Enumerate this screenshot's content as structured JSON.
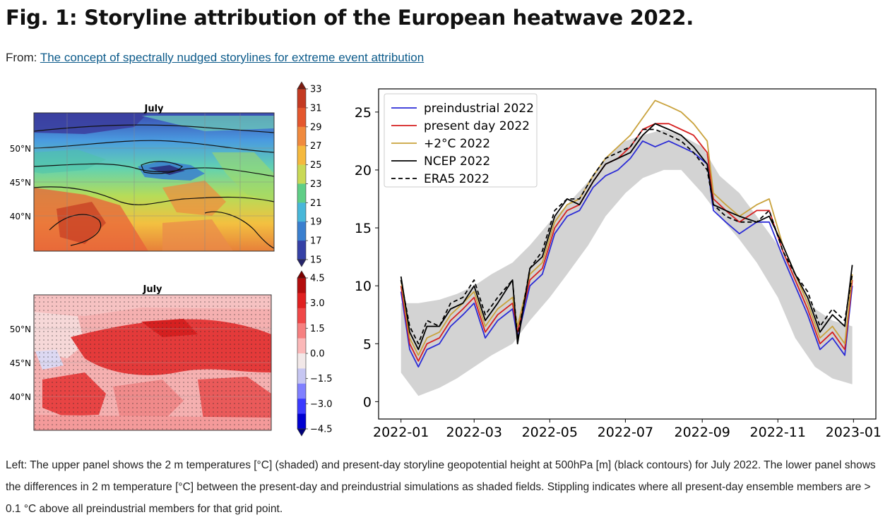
{
  "figure": {
    "title": "Fig. 1: Storyline attribution of the European heatwave 2022.",
    "source_prefix": "From: ",
    "source_link": "The concept of spectrally nudged storylines for extreme event attribution",
    "caption": "Left: The upper panel shows the 2 m temperatures [°C] (shaded) and present-day storyline geopotential height at 500hPa [m] (black contours) for July 2022. The lower panel shows the differences in 2 m temperature [°C] between the present-day and preindustrial simulations as shaded fields. Stippling indicates where all present-day ensemble members are > 0.1 °C above all preindustrial members for that grid point."
  },
  "maps": {
    "upper": {
      "title": "July",
      "lat_labels": [
        "50°N",
        "45°N",
        "40°N"
      ],
      "colorbar_ticks": [
        "33",
        "31",
        "29",
        "27",
        "25",
        "23",
        "21",
        "19",
        "17",
        "15"
      ],
      "colorbar_colors": [
        "#7a1c12",
        "#c43a22",
        "#e4572e",
        "#f08a3e",
        "#f5b93e",
        "#c9d956",
        "#5fce86",
        "#48b7d9",
        "#3a7fcf",
        "#3541a6",
        "#26246a"
      ]
    },
    "lower": {
      "title": "July",
      "lat_labels": [
        "50°N",
        "45°N",
        "40°N"
      ],
      "colorbar_ticks": [
        "4.5",
        "3.0",
        "1.5",
        "0.0",
        "−1.5",
        "−3.0",
        "−4.5"
      ],
      "colorbar_colors": [
        "#7a0000",
        "#b30d0d",
        "#e02020",
        "#f04848",
        "#f68080",
        "#fbb8b8",
        "#f2e8e8",
        "#c6c6f2",
        "#8080ff",
        "#3a3aff",
        "#0000d0",
        "#00007a"
      ]
    }
  },
  "chart_data": {
    "type": "line",
    "title": "",
    "xlabel": "",
    "ylabel": "",
    "xlim": [
      "2022-01-01",
      "2023-01-01"
    ],
    "ylim": [
      -1.5,
      27
    ],
    "x_tick_labels": [
      "2022-01",
      "2022-03",
      "2022-05",
      "2022-07",
      "2022-09",
      "2022-11",
      "2023-01"
    ],
    "y_tick_values": [
      0,
      5,
      10,
      15,
      20,
      25
    ],
    "legend_position": "top-left",
    "band": {
      "x": [
        "2022-01-01",
        "2022-01-15",
        "2022-02-01",
        "2022-02-15",
        "2022-03-01",
        "2022-03-15",
        "2022-04-01",
        "2022-04-15",
        "2022-05-01",
        "2022-05-15",
        "2022-06-01",
        "2022-06-15",
        "2022-07-01",
        "2022-07-15",
        "2022-08-01",
        "2022-08-15",
        "2022-09-01",
        "2022-09-15",
        "2022-10-01",
        "2022-10-15",
        "2022-11-01",
        "2022-11-15",
        "2022-12-01",
        "2022-12-15",
        "2022-12-31"
      ],
      "low": [
        2.5,
        0.5,
        1.2,
        2.0,
        3.0,
        4.0,
        5.0,
        7.0,
        9.0,
        11.0,
        13.5,
        16.0,
        18.0,
        19.3,
        20.0,
        20.0,
        18.0,
        16.0,
        14.0,
        12.0,
        9.0,
        5.5,
        3.0,
        2.0,
        1.5
      ],
      "high": [
        8.5,
        8.5,
        8.8,
        9.3,
        10.0,
        11.0,
        12.0,
        13.5,
        15.5,
        17.0,
        19.0,
        21.0,
        22.5,
        23.0,
        23.5,
        23.0,
        22.0,
        19.5,
        18.0,
        16.0,
        13.5,
        11.0,
        8.0,
        7.0,
        6.5
      ]
    },
    "series": [
      {
        "name": "preindustrial 2022",
        "color": "#2b2bd6",
        "dash": "",
        "x": [
          "2022-01-01",
          "2022-01-08",
          "2022-01-15",
          "2022-01-22",
          "2022-02-01",
          "2022-02-10",
          "2022-02-20",
          "2022-03-01",
          "2022-03-10",
          "2022-03-20",
          "2022-04-01",
          "2022-04-05",
          "2022-04-15",
          "2022-04-25",
          "2022-05-05",
          "2022-05-15",
          "2022-05-25",
          "2022-06-05",
          "2022-06-15",
          "2022-06-25",
          "2022-07-05",
          "2022-07-15",
          "2022-07-25",
          "2022-08-05",
          "2022-08-15",
          "2022-08-25",
          "2022-09-05",
          "2022-09-10",
          "2022-09-20",
          "2022-10-01",
          "2022-10-15",
          "2022-10-25",
          "2022-11-05",
          "2022-11-15",
          "2022-11-25",
          "2022-12-05",
          "2022-12-15",
          "2022-12-25",
          "2022-12-31"
        ],
        "values": [
          9.5,
          4.5,
          3.0,
          4.5,
          5.0,
          6.5,
          7.5,
          8.5,
          5.5,
          7.0,
          8.0,
          5.5,
          10.0,
          11.0,
          14.5,
          16.0,
          16.5,
          18.5,
          19.5,
          20.0,
          21.0,
          22.5,
          22.0,
          22.5,
          22.0,
          21.5,
          20.5,
          16.5,
          15.5,
          14.5,
          15.5,
          15.5,
          12.5,
          10.0,
          7.5,
          4.5,
          5.5,
          4.0,
          10.0
        ]
      },
      {
        "name": "present day 2022",
        "color": "#d62020",
        "dash": "",
        "x": [
          "2022-01-01",
          "2022-01-08",
          "2022-01-15",
          "2022-01-22",
          "2022-02-01",
          "2022-02-10",
          "2022-02-20",
          "2022-03-01",
          "2022-03-10",
          "2022-03-20",
          "2022-04-01",
          "2022-04-05",
          "2022-04-15",
          "2022-04-25",
          "2022-05-05",
          "2022-05-15",
          "2022-05-25",
          "2022-06-05",
          "2022-06-15",
          "2022-06-25",
          "2022-07-05",
          "2022-07-15",
          "2022-07-25",
          "2022-08-05",
          "2022-08-15",
          "2022-08-25",
          "2022-09-05",
          "2022-09-10",
          "2022-09-20",
          "2022-10-01",
          "2022-10-15",
          "2022-10-25",
          "2022-11-05",
          "2022-11-15",
          "2022-11-25",
          "2022-12-05",
          "2022-12-15",
          "2022-12-25",
          "2022-12-31"
        ],
        "values": [
          10.0,
          5.0,
          3.5,
          5.0,
          5.5,
          7.0,
          8.0,
          9.0,
          6.0,
          7.5,
          8.5,
          6.0,
          10.5,
          11.5,
          15.0,
          16.5,
          17.0,
          19.0,
          20.5,
          21.0,
          22.0,
          23.5,
          24.0,
          24.0,
          23.5,
          23.0,
          21.5,
          17.5,
          16.5,
          15.5,
          16.5,
          16.5,
          13.0,
          10.5,
          8.0,
          5.0,
          6.0,
          4.5,
          10.5
        ]
      },
      {
        "name": "+2°C 2022",
        "color": "#c9a23c",
        "dash": "",
        "x": [
          "2022-01-01",
          "2022-01-08",
          "2022-01-15",
          "2022-01-22",
          "2022-02-01",
          "2022-02-10",
          "2022-02-20",
          "2022-03-01",
          "2022-03-10",
          "2022-03-20",
          "2022-04-01",
          "2022-04-05",
          "2022-04-15",
          "2022-04-25",
          "2022-05-05",
          "2022-05-15",
          "2022-05-25",
          "2022-06-05",
          "2022-06-15",
          "2022-06-25",
          "2022-07-05",
          "2022-07-15",
          "2022-07-25",
          "2022-08-05",
          "2022-08-15",
          "2022-08-25",
          "2022-09-05",
          "2022-09-10",
          "2022-09-20",
          "2022-10-01",
          "2022-10-15",
          "2022-10-25",
          "2022-11-05",
          "2022-11-15",
          "2022-11-25",
          "2022-12-05",
          "2022-12-15",
          "2022-12-25",
          "2022-12-31"
        ],
        "values": [
          10.5,
          5.5,
          4.0,
          5.5,
          6.0,
          7.5,
          8.5,
          9.5,
          6.5,
          8.0,
          9.0,
          6.5,
          11.0,
          12.0,
          15.5,
          17.0,
          17.5,
          19.5,
          21.0,
          22.0,
          23.0,
          24.5,
          26.0,
          25.5,
          25.0,
          24.0,
          22.5,
          18.0,
          17.0,
          16.0,
          17.0,
          17.5,
          13.5,
          11.0,
          8.5,
          5.5,
          6.5,
          5.0,
          11.0
        ]
      },
      {
        "name": "NCEP 2022",
        "color": "#000000",
        "dash": "",
        "x": [
          "2022-01-01",
          "2022-01-08",
          "2022-01-15",
          "2022-01-22",
          "2022-02-01",
          "2022-02-10",
          "2022-02-20",
          "2022-03-01",
          "2022-03-10",
          "2022-03-20",
          "2022-04-01",
          "2022-04-05",
          "2022-04-15",
          "2022-04-25",
          "2022-05-05",
          "2022-05-15",
          "2022-05-25",
          "2022-06-05",
          "2022-06-15",
          "2022-06-25",
          "2022-07-05",
          "2022-07-15",
          "2022-07-25",
          "2022-08-05",
          "2022-08-15",
          "2022-08-25",
          "2022-09-05",
          "2022-09-10",
          "2022-09-20",
          "2022-10-01",
          "2022-10-15",
          "2022-10-25",
          "2022-11-05",
          "2022-11-15",
          "2022-11-25",
          "2022-12-05",
          "2022-12-15",
          "2022-12-25",
          "2022-12-31"
        ],
        "values": [
          10.8,
          6.0,
          4.5,
          6.5,
          6.5,
          8.0,
          8.5,
          10.0,
          7.0,
          8.5,
          10.5,
          5.0,
          11.5,
          12.5,
          16.0,
          17.5,
          17.0,
          19.0,
          20.5,
          21.0,
          21.5,
          23.0,
          24.0,
          23.5,
          23.0,
          22.0,
          20.5,
          17.0,
          16.5,
          16.0,
          15.5,
          16.0,
          13.5,
          11.0,
          9.0,
          6.0,
          7.5,
          6.5,
          11.8
        ]
      },
      {
        "name": "ERA5 2022",
        "color": "#000000",
        "dash": "6,4",
        "x": [
          "2022-01-01",
          "2022-01-08",
          "2022-01-15",
          "2022-01-22",
          "2022-02-01",
          "2022-02-10",
          "2022-02-20",
          "2022-03-01",
          "2022-03-10",
          "2022-03-20",
          "2022-04-01",
          "2022-04-05",
          "2022-04-15",
          "2022-04-25",
          "2022-05-05",
          "2022-05-15",
          "2022-05-25",
          "2022-06-05",
          "2022-06-15",
          "2022-06-25",
          "2022-07-05",
          "2022-07-15",
          "2022-07-25",
          "2022-08-05",
          "2022-08-15",
          "2022-08-25",
          "2022-09-05",
          "2022-09-10",
          "2022-09-20",
          "2022-10-01",
          "2022-10-15",
          "2022-10-25",
          "2022-11-05",
          "2022-11-15",
          "2022-11-25",
          "2022-12-05",
          "2022-12-15",
          "2022-12-25",
          "2022-12-31"
        ],
        "values": [
          10.5,
          6.5,
          5.0,
          7.0,
          6.5,
          8.5,
          9.0,
          10.5,
          7.5,
          9.0,
          10.5,
          5.5,
          11.5,
          13.0,
          16.5,
          17.5,
          17.5,
          19.5,
          21.0,
          21.5,
          22.0,
          23.5,
          23.5,
          23.0,
          22.5,
          21.5,
          20.0,
          17.0,
          16.0,
          15.5,
          15.5,
          16.5,
          13.0,
          11.0,
          9.5,
          6.5,
          8.0,
          7.0,
          11.0
        ]
      }
    ]
  }
}
